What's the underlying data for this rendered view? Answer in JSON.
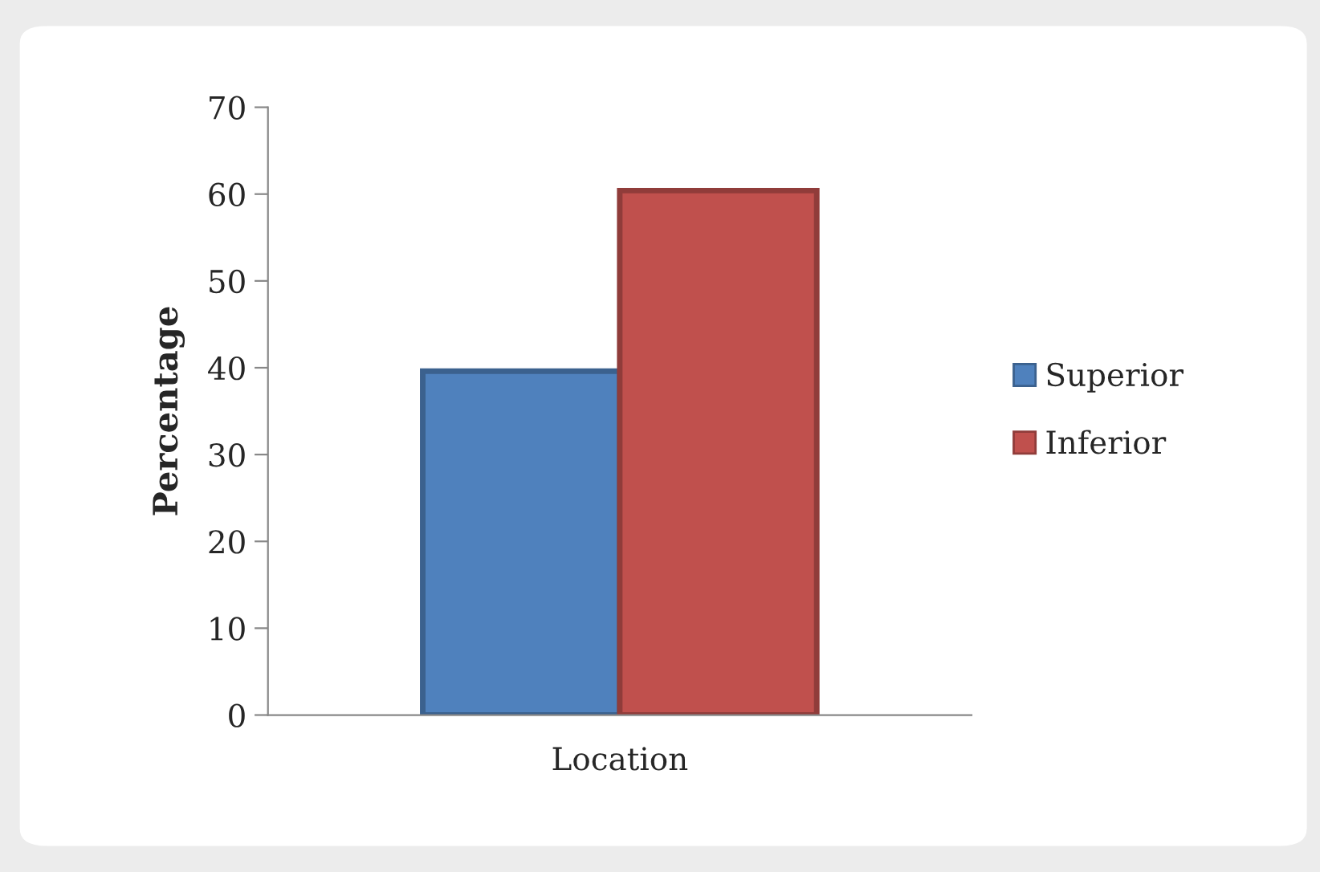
{
  "chart_data": {
    "type": "bar",
    "ylabel": "Percentage",
    "categories": [
      "Location"
    ],
    "series": [
      {
        "name": "Superior",
        "color": "#4f81bd",
        "values": [
          39.6
        ]
      },
      {
        "name": "Inferior",
        "color": "#c0504d",
        "values": [
          60.4
        ]
      }
    ],
    "ylim": [
      0,
      70
    ],
    "yticks": [
      0,
      10,
      20,
      30,
      40,
      50,
      60,
      70
    ],
    "grid": false,
    "legend": "right"
  }
}
